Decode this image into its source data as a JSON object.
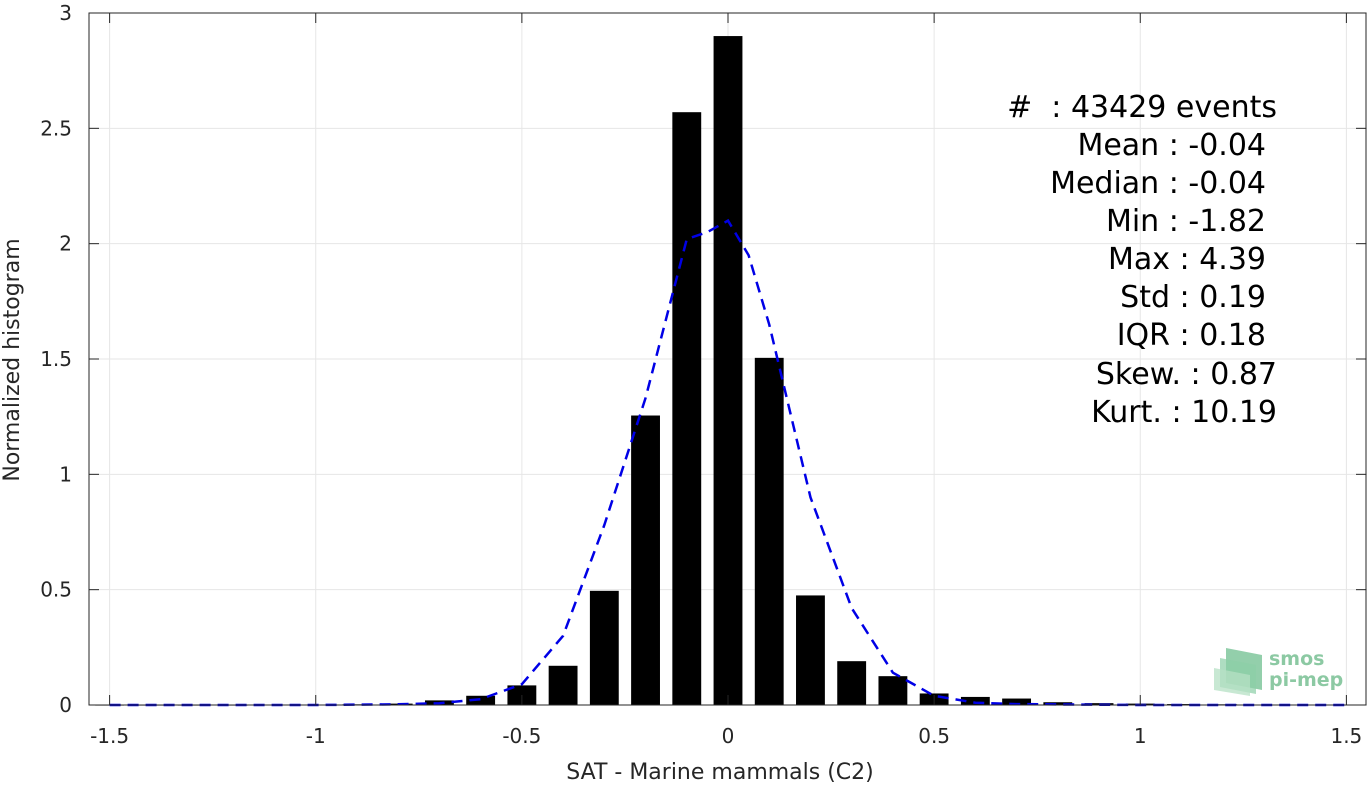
{
  "chart_data": {
    "type": "bar",
    "xlabel": "SAT - Marine mammals (C2)",
    "ylabel": "Normalized histogram",
    "xlim": [
      -1.55,
      1.55
    ],
    "ylim": [
      0,
      3
    ],
    "grid": true,
    "xticks": [
      -1.5,
      -1,
      -0.5,
      0,
      0.5,
      1,
      1.5
    ],
    "xtick_labels": [
      "-1.5",
      "-1",
      "-0.5",
      "0",
      "0.5",
      "1",
      "1.5"
    ],
    "yticks": [
      0,
      0.5,
      1,
      1.5,
      2,
      2.5,
      3
    ],
    "ytick_labels": [
      "0",
      "0.5",
      "1",
      "1.5",
      "2",
      "2.5",
      "3"
    ],
    "bar_width": 0.07,
    "bars": {
      "x": [
        -1.5,
        -1.4,
        -1.3,
        -1.2,
        -1.1,
        -1.0,
        -0.9,
        -0.8,
        -0.7,
        -0.6,
        -0.5,
        -0.4,
        -0.3,
        -0.2,
        -0.1,
        0.0,
        0.1,
        0.2,
        0.3,
        0.4,
        0.5,
        0.6,
        0.7,
        0.8,
        0.9,
        1.0,
        1.1,
        1.2,
        1.3,
        1.4,
        1.5
      ],
      "values": [
        0.001,
        0.001,
        0.001,
        0.001,
        0.002,
        0.002,
        0.003,
        0.006,
        0.02,
        0.04,
        0.085,
        0.17,
        0.495,
        1.255,
        2.57,
        2.9,
        1.505,
        0.475,
        0.19,
        0.125,
        0.05,
        0.035,
        0.028,
        0.012,
        0.008,
        0.006,
        0.004,
        0.003,
        0.002,
        0.002,
        0.002
      ]
    },
    "fit_curve": {
      "name": "fit",
      "style": "dashed",
      "x": [
        -1.5,
        -1.0,
        -0.8,
        -0.7,
        -0.6,
        -0.5,
        -0.4,
        -0.3,
        -0.2,
        -0.1,
        -0.05,
        0.0,
        0.05,
        0.1,
        0.2,
        0.3,
        0.4,
        0.5,
        0.6,
        0.7,
        1.0,
        1.5
      ],
      "y": [
        0.0,
        0.0,
        0.003,
        0.008,
        0.025,
        0.09,
        0.3,
        0.78,
        1.33,
        2.02,
        2.05,
        2.1,
        1.95,
        1.65,
        0.9,
        0.42,
        0.14,
        0.04,
        0.01,
        0.004,
        0.0,
        0.0
      ]
    },
    "annotations": [
      "#  : 43429 events",
      "Mean : -0.04",
      "Median : -0.04",
      "Min : -1.82",
      "Max : 4.39",
      "Std : 0.19",
      "IQR : 0.18",
      "Skew. : 0.87",
      "Kurt. : 10.19"
    ]
  },
  "colors": {
    "bars": "#000000",
    "fit_line": "#0000e6",
    "grid": "#e6e6e6",
    "axes": "#262626",
    "logo": "#8cc9a3"
  },
  "logo": {
    "line1": "smos",
    "line2": "pi-mep"
  }
}
